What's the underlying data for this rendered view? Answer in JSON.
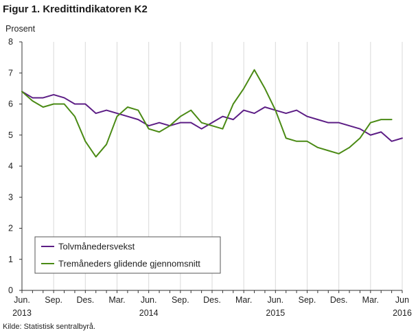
{
  "figure": {
    "title": "Figur 1. Kredittindikatoren K2",
    "source": "Kilde: Statistisk sentralbyrå."
  },
  "chart_data": {
    "type": "line",
    "title": "Figur 1. Kredittindikatoren K2",
    "ylabel": "Prosent",
    "xlabel": "",
    "ylim": [
      0,
      8
    ],
    "yticks": [
      0,
      1,
      2,
      3,
      4,
      5,
      6,
      7,
      8
    ],
    "grid": "vertical",
    "legend_position": "bottom-left",
    "x": [
      "2013-06",
      "2013-07",
      "2013-08",
      "2013-09",
      "2013-10",
      "2013-11",
      "2013-12",
      "2014-01",
      "2014-02",
      "2014-03",
      "2014-04",
      "2014-05",
      "2014-06",
      "2014-07",
      "2014-08",
      "2014-09",
      "2014-10",
      "2014-11",
      "2014-12",
      "2015-01",
      "2015-02",
      "2015-03",
      "2015-04",
      "2015-05",
      "2015-06",
      "2015-07",
      "2015-08",
      "2015-09",
      "2015-10",
      "2015-11",
      "2015-12",
      "2016-01",
      "2016-02",
      "2016-03",
      "2016-04",
      "2016-05",
      "2016-06"
    ],
    "xtick_labels": [
      {
        "x": "2013-06",
        "month": "Jun.",
        "year": "2013"
      },
      {
        "x": "2013-09",
        "month": "Sep.",
        "year": ""
      },
      {
        "x": "2013-12",
        "month": "Des.",
        "year": ""
      },
      {
        "x": "2014-03",
        "month": "Mar.",
        "year": ""
      },
      {
        "x": "2014-06",
        "month": "Jun.",
        "year": "2014"
      },
      {
        "x": "2014-09",
        "month": "Sep.",
        "year": ""
      },
      {
        "x": "2014-12",
        "month": "Des.",
        "year": ""
      },
      {
        "x": "2015-03",
        "month": "Mar.",
        "year": ""
      },
      {
        "x": "2015-06",
        "month": "Jun.",
        "year": "2015"
      },
      {
        "x": "2015-09",
        "month": "Sep.",
        "year": ""
      },
      {
        "x": "2015-12",
        "month": "Des.",
        "year": ""
      },
      {
        "x": "2016-03",
        "month": "Mar.",
        "year": ""
      },
      {
        "x": "2016-06",
        "month": "Jun",
        "year": "2016"
      }
    ],
    "series": [
      {
        "name": "Tolvmånedersvekst",
        "color": "#5c1d85",
        "values": [
          6.4,
          6.2,
          6.2,
          6.3,
          6.2,
          6.0,
          6.0,
          5.7,
          5.8,
          5.7,
          5.6,
          5.5,
          5.3,
          5.4,
          5.3,
          5.4,
          5.4,
          5.2,
          5.4,
          5.6,
          5.5,
          5.8,
          5.7,
          5.9,
          5.8,
          5.7,
          5.8,
          5.6,
          5.5,
          5.4,
          5.4,
          5.3,
          5.2,
          5.0,
          5.1,
          4.8,
          4.9
        ]
      },
      {
        "name": "Tremåneders glidende gjennomsnitt",
        "color": "#4a8a14",
        "values": [
          6.4,
          6.1,
          5.9,
          6.0,
          6.0,
          5.6,
          4.8,
          4.3,
          4.7,
          5.6,
          5.9,
          5.8,
          5.2,
          5.1,
          5.3,
          5.6,
          5.8,
          5.4,
          5.3,
          5.2,
          6.0,
          6.5,
          7.1,
          6.5,
          5.8,
          4.9,
          4.8,
          4.8,
          4.6,
          4.5,
          4.4,
          4.6,
          4.9,
          5.4,
          5.5,
          5.5,
          null
        ]
      }
    ]
  }
}
